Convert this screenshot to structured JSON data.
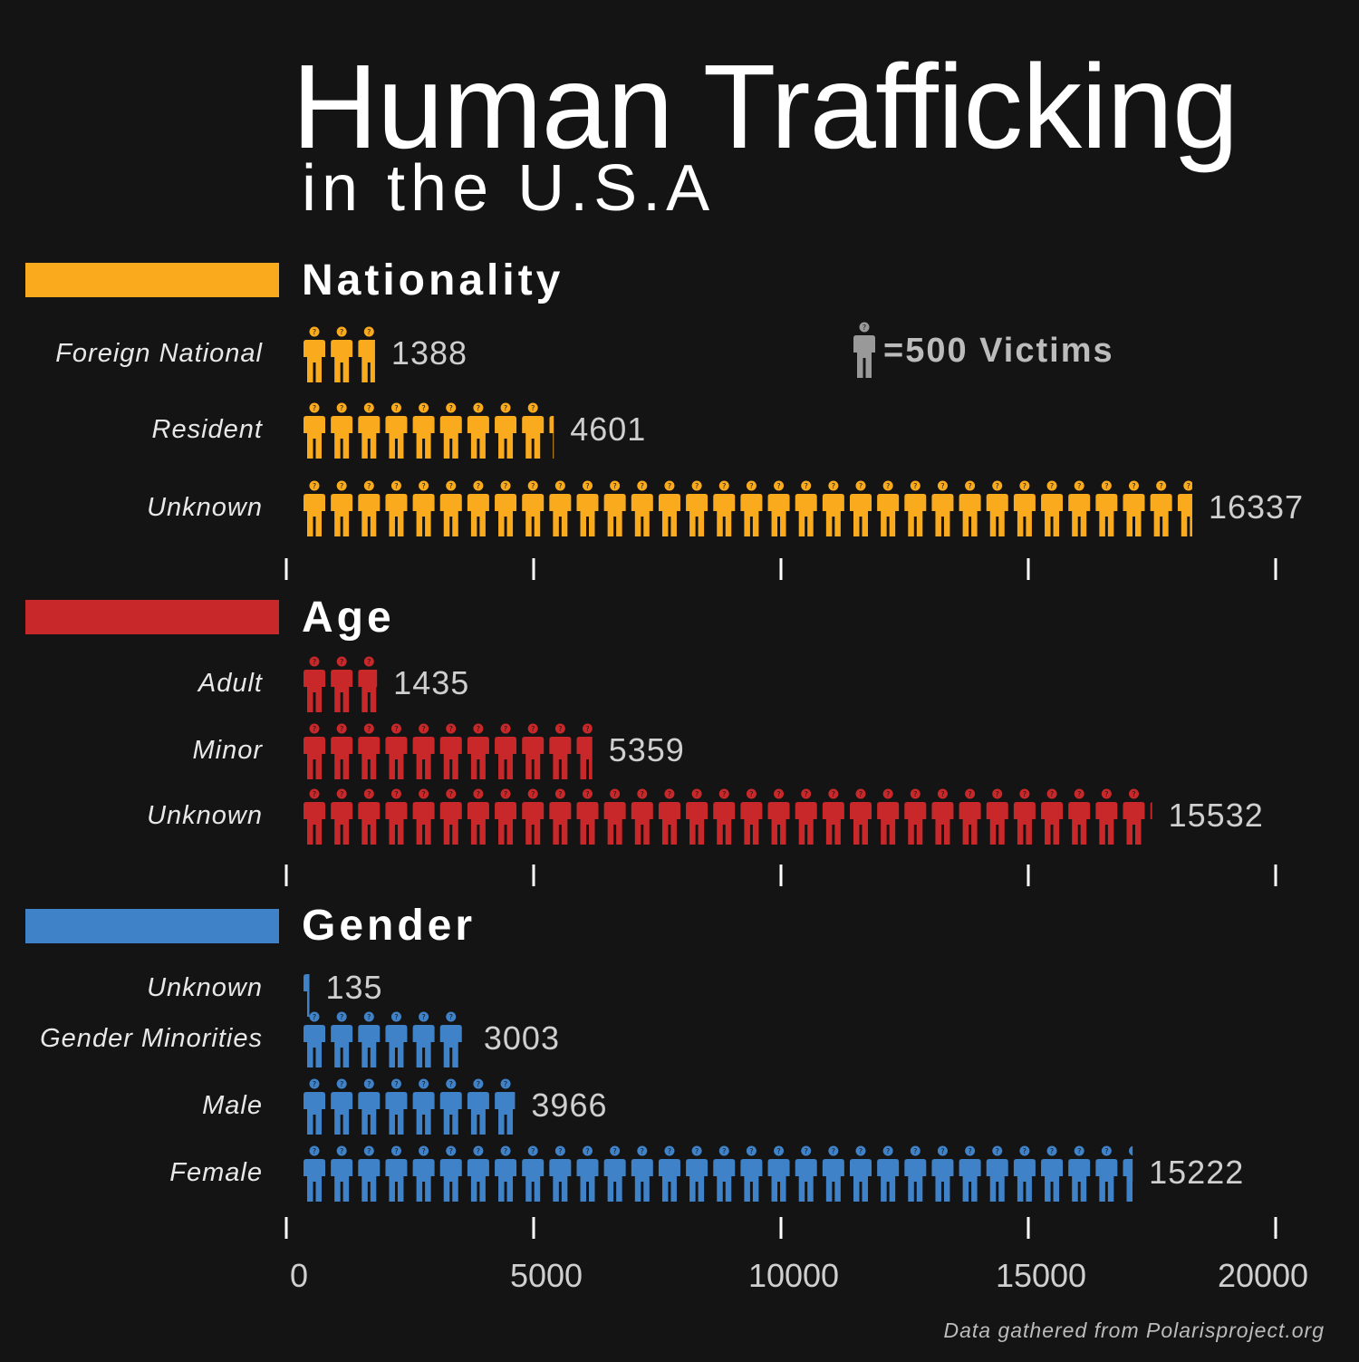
{
  "header": {
    "title": "Human Trafficking",
    "subtitle": "in the U.S.A"
  },
  "legend": {
    "text": "=500 Victims",
    "icon": "person-icon",
    "color": "#999999"
  },
  "source": "Data gathered from Polarisproject.org",
  "chart_data": {
    "type": "bar",
    "unit_per_icon": 500,
    "xlim": [
      0,
      20000
    ],
    "xticks": [
      0,
      5000,
      10000,
      15000,
      20000
    ],
    "xtick_labels": [
      "0",
      "5000",
      "10000",
      "15000",
      "20000"
    ],
    "groups": [
      {
        "name": "Nationality",
        "color": "#f9ab1d",
        "categories": [
          "Foreign National",
          "Resident",
          "Unknown"
        ],
        "values": [
          1388,
          4601,
          16337
        ]
      },
      {
        "name": "Age",
        "color": "#c8282a",
        "categories": [
          "Adult",
          "Minor",
          "Unknown"
        ],
        "values": [
          1435,
          5359,
          15532
        ]
      },
      {
        "name": "Gender",
        "color": "#3f82c8",
        "categories": [
          "Unknown",
          "Gender Minorities",
          "Male",
          "Female"
        ],
        "values": [
          135,
          3003,
          3966,
          15222
        ]
      }
    ]
  }
}
